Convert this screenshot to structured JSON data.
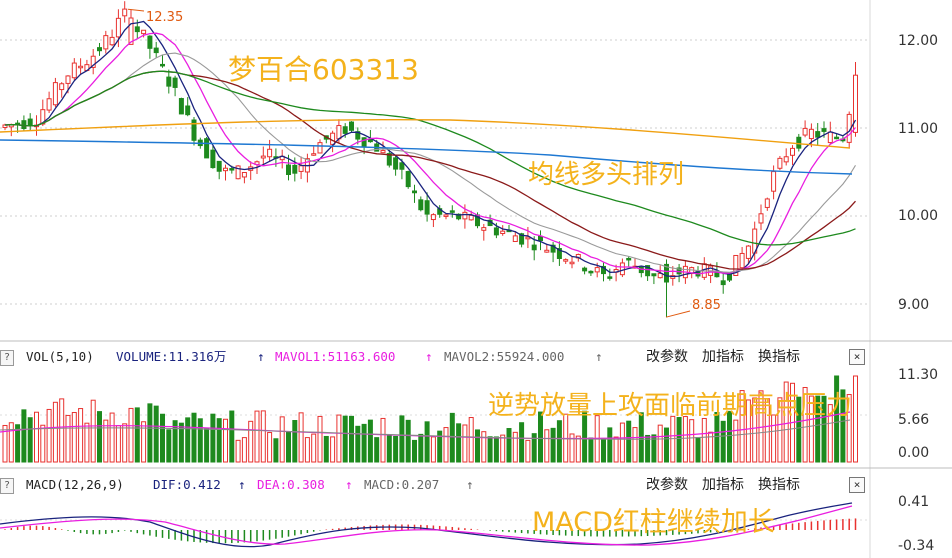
{
  "price_panel": {
    "title_annotation": "梦百合603313",
    "ma_annotation": "均线多头排列",
    "high_label": "12.35",
    "low_label": "8.85",
    "y_axis_labels": [
      "12.00",
      "11.00",
      "10.00",
      "9.00"
    ]
  },
  "volume_panel": {
    "help_icon": "?",
    "indicator_name": "VOL(5,10)",
    "volume_readout": "VOLUME:11.316万",
    "mavol1_readout": "MAVOL1:51163.600",
    "mavol2_readout": "MAVOL2:55924.000",
    "arrow": "↑",
    "btn_params": "改参数",
    "btn_add": "加指标",
    "btn_switch": "换指标",
    "close": "×",
    "annotation": "逆势放量上攻面临前期高点压力",
    "y_axis_labels": [
      "11.30",
      "5.66",
      "0.00"
    ]
  },
  "macd_panel": {
    "help_icon": "?",
    "indicator_name": "MACD(12,26,9)",
    "dif_readout": "DIF:0.412",
    "dea_readout": "DEA:0.308",
    "macd_readout": "MACD:0.207",
    "arrow": "↑",
    "btn_params": "改参数",
    "btn_add": "加指标",
    "btn_switch": "换指标",
    "close": "×",
    "annotation": "MACD红柱继续加长",
    "y_axis_labels": [
      "0.41",
      "-0.34"
    ]
  },
  "colors": {
    "up": "#e8322f",
    "down": "#1e8a1e",
    "ma5": "#1a237e",
    "ma10": "#e91ee0",
    "ma20": "#9a9a9a",
    "ma30": "#8b1a1a",
    "ma60": "#1e8a1e",
    "ma120": "#f0a010",
    "ma250": "#1e78d2",
    "annotation": "#f4b21c",
    "label_orange": "#e05a10"
  }
}
